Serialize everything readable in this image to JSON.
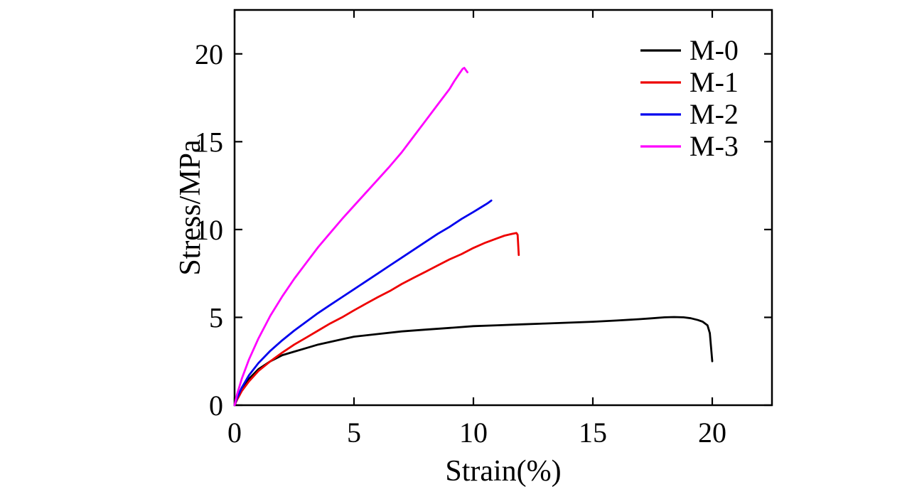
{
  "chart_data": {
    "type": "line",
    "title": "",
    "xlabel": "Strain(%)",
    "ylabel": "Stress/MPa",
    "xlim": [
      0,
      22.5
    ],
    "ylim": [
      0,
      22.5
    ],
    "xticks": [
      0,
      5,
      10,
      15,
      20
    ],
    "yticks": [
      0,
      5,
      10,
      15,
      20
    ],
    "grid": false,
    "legend_position": "top-right",
    "frame_color": "#000000",
    "series": [
      {
        "name": "M-0",
        "color": "#000000",
        "points": [
          [
            0,
            0
          ],
          [
            0.1,
            0.35
          ],
          [
            0.3,
            0.9
          ],
          [
            0.6,
            1.5
          ],
          [
            1,
            2.05
          ],
          [
            1.5,
            2.5
          ],
          [
            2,
            2.85
          ],
          [
            2.5,
            3.05
          ],
          [
            3,
            3.25
          ],
          [
            3.5,
            3.45
          ],
          [
            4,
            3.6
          ],
          [
            4.5,
            3.75
          ],
          [
            5,
            3.9
          ],
          [
            6,
            4.05
          ],
          [
            7,
            4.2
          ],
          [
            8,
            4.3
          ],
          [
            9,
            4.4
          ],
          [
            10,
            4.5
          ],
          [
            11,
            4.55
          ],
          [
            12,
            4.6
          ],
          [
            13,
            4.65
          ],
          [
            14,
            4.7
          ],
          [
            15,
            4.75
          ],
          [
            16,
            4.82
          ],
          [
            17,
            4.9
          ],
          [
            17.5,
            4.95
          ],
          [
            18,
            5.0
          ],
          [
            18.4,
            5.02
          ],
          [
            18.8,
            5.0
          ],
          [
            19.1,
            4.95
          ],
          [
            19.4,
            4.85
          ],
          [
            19.6,
            4.75
          ],
          [
            19.8,
            4.55
          ],
          [
            19.9,
            4.1
          ],
          [
            19.95,
            3.3
          ],
          [
            20,
            2.5
          ]
        ]
      },
      {
        "name": "M-1",
        "color": "#ee0000",
        "points": [
          [
            0,
            0
          ],
          [
            0.1,
            0.3
          ],
          [
            0.3,
            0.8
          ],
          [
            0.6,
            1.35
          ],
          [
            1,
            1.95
          ],
          [
            1.5,
            2.5
          ],
          [
            2,
            3.0
          ],
          [
            2.5,
            3.45
          ],
          [
            3,
            3.85
          ],
          [
            3.5,
            4.25
          ],
          [
            4,
            4.65
          ],
          [
            4.5,
            5.0
          ],
          [
            5,
            5.4
          ],
          [
            5.5,
            5.78
          ],
          [
            6,
            6.15
          ],
          [
            6.5,
            6.5
          ],
          [
            7,
            6.9
          ],
          [
            7.5,
            7.25
          ],
          [
            8,
            7.6
          ],
          [
            8.5,
            7.95
          ],
          [
            9,
            8.3
          ],
          [
            9.5,
            8.6
          ],
          [
            10,
            8.95
          ],
          [
            10.5,
            9.25
          ],
          [
            11,
            9.5
          ],
          [
            11.3,
            9.65
          ],
          [
            11.6,
            9.75
          ],
          [
            11.8,
            9.8
          ],
          [
            11.85,
            9.7
          ],
          [
            11.9,
            8.55
          ]
        ]
      },
      {
        "name": "M-2",
        "color": "#0000ee",
        "points": [
          [
            0,
            0
          ],
          [
            0.1,
            0.4
          ],
          [
            0.3,
            1.0
          ],
          [
            0.6,
            1.7
          ],
          [
            1,
            2.4
          ],
          [
            1.5,
            3.1
          ],
          [
            2,
            3.7
          ],
          [
            2.5,
            4.25
          ],
          [
            3,
            4.75
          ],
          [
            3.5,
            5.25
          ],
          [
            4,
            5.7
          ],
          [
            4.5,
            6.15
          ],
          [
            5,
            6.6
          ],
          [
            5.5,
            7.05
          ],
          [
            6,
            7.5
          ],
          [
            6.5,
            7.95
          ],
          [
            7,
            8.4
          ],
          [
            7.5,
            8.85
          ],
          [
            8,
            9.3
          ],
          [
            8.5,
            9.75
          ],
          [
            9,
            10.15
          ],
          [
            9.5,
            10.6
          ],
          [
            10,
            11.0
          ],
          [
            10.3,
            11.25
          ],
          [
            10.6,
            11.5
          ],
          [
            10.75,
            11.65
          ]
        ]
      },
      {
        "name": "M-3",
        "color": "#ff00ff",
        "points": [
          [
            0,
            0
          ],
          [
            0.1,
            0.6
          ],
          [
            0.3,
            1.5
          ],
          [
            0.6,
            2.6
          ],
          [
            1,
            3.8
          ],
          [
            1.5,
            5.1
          ],
          [
            2,
            6.2
          ],
          [
            2.5,
            7.2
          ],
          [
            3,
            8.1
          ],
          [
            3.5,
            9.0
          ],
          [
            4,
            9.8
          ],
          [
            4.5,
            10.6
          ],
          [
            5,
            11.35
          ],
          [
            5.5,
            12.1
          ],
          [
            6,
            12.85
          ],
          [
            6.5,
            13.6
          ],
          [
            7,
            14.4
          ],
          [
            7.5,
            15.3
          ],
          [
            8,
            16.2
          ],
          [
            8.5,
            17.1
          ],
          [
            9,
            18.0
          ],
          [
            9.2,
            18.45
          ],
          [
            9.4,
            18.85
          ],
          [
            9.55,
            19.15
          ],
          [
            9.62,
            19.2
          ],
          [
            9.7,
            19.05
          ],
          [
            9.75,
            18.95
          ]
        ]
      }
    ]
  }
}
